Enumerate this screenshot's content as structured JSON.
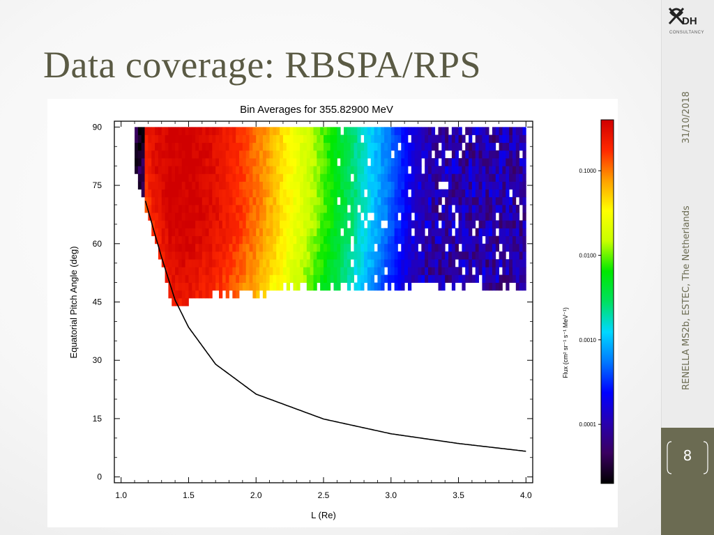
{
  "slide": {
    "title": "Data coverage: RBSPA/RPS",
    "date": "31/10/2018",
    "venue": "RENELLA MS2b, ESTEC, The Netherlands",
    "page_number": "8",
    "logo": {
      "text": "DH",
      "subtitle": "CONSULTANCY"
    }
  },
  "colors": {
    "sidebar": "#6b6b52",
    "title": "#5a5a44"
  },
  "chart_data": {
    "type": "heatmap",
    "title": "Bin Averages for 355.82900 MeV",
    "xlabel": "L (Re)",
    "ylabel": "Equatorial Pitch Angle (deg)",
    "xlim": [
      0.95,
      4.05
    ],
    "ylim": [
      -1.5,
      91.5
    ],
    "x_ticks": [
      1.0,
      1.5,
      2.0,
      2.5,
      3.0,
      3.5,
      4.0
    ],
    "x_tick_labels": [
      "1.0",
      "1.5",
      "2.0",
      "2.5",
      "3.0",
      "3.5",
      "4.0"
    ],
    "y_ticks": [
      0,
      15,
      30,
      45,
      60,
      75,
      90
    ],
    "y_tick_labels": [
      "0",
      "15",
      "30",
      "45",
      "60",
      "75",
      "90"
    ],
    "grid": false,
    "data_extent": {
      "l_min": 1.0,
      "l_max": 4.0,
      "pitch_max": 90
    },
    "peak_flux_l": 1.45,
    "flux_peak_value": 0.4,
    "low_bound_flux_pitch": {
      "l": [
        1.4,
        1.6,
        1.8,
        2.0,
        2.2,
        2.4,
        2.6,
        3.0,
        4.0
      ],
      "pitch": [
        46,
        47,
        48,
        48,
        49,
        50,
        50,
        50,
        50
      ]
    },
    "loss_cone_curve": {
      "description": "boundary curve",
      "l": [
        1.18,
        1.25,
        1.3,
        1.4,
        1.5,
        1.7,
        2.0,
        2.5,
        3.0,
        3.5,
        4.0
      ],
      "pitch": [
        71.0,
        62.5,
        56.5,
        45.5,
        38.5,
        29.0,
        21.3,
        14.9,
        11.1,
        8.6,
        6.6
      ]
    },
    "colorbar": {
      "label": "Flux (cm² sr⁻¹ s⁻¹ MeV⁻¹)",
      "scale": "log",
      "range": [
        2e-05,
        0.4
      ],
      "ticks": [
        0.1,
        0.01,
        0.001,
        0.0001
      ],
      "tick_labels": [
        "0.1000",
        "0.0100",
        "0.0010",
        "0.0001"
      ],
      "colormap": [
        "#000000",
        "#3a0060",
        "#2800b0",
        "#0000ff",
        "#0078ff",
        "#00d8ff",
        "#00e060",
        "#00e800",
        "#c8ff00",
        "#ffff00",
        "#ffa000",
        "#ff2800",
        "#d00000"
      ]
    }
  }
}
